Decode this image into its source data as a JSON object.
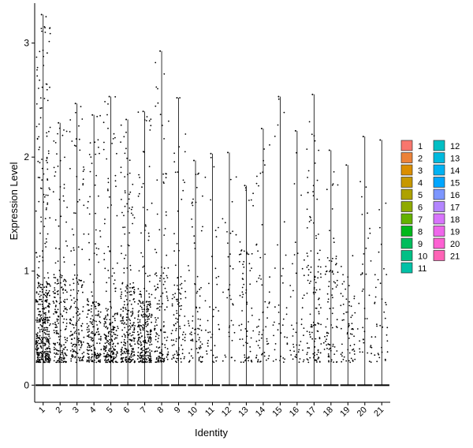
{
  "chart_data": {
    "type": "violin",
    "xlabel": "Identity",
    "ylabel": "Expression Level",
    "ylim": [
      -0.15,
      3.35
    ],
    "yticks": [
      0,
      1,
      2,
      3
    ],
    "categories": [
      "1",
      "2",
      "3",
      "4",
      "5",
      "6",
      "7",
      "8",
      "9",
      "10",
      "11",
      "12",
      "13",
      "14",
      "15",
      "16",
      "17",
      "18",
      "19",
      "20",
      "21"
    ],
    "max_values": [
      3.25,
      2.3,
      2.47,
      2.37,
      2.53,
      2.33,
      2.4,
      2.93,
      2.52,
      1.97,
      2.03,
      2.04,
      1.75,
      2.25,
      2.53,
      2.23,
      2.55,
      2.06,
      1.93,
      2.18,
      2.15
    ],
    "point_density": [
      1.0,
      0.45,
      0.35,
      0.4,
      0.5,
      0.55,
      0.6,
      0.3,
      0.2,
      0.15,
      0.05,
      0.04,
      0.12,
      0.1,
      0.04,
      0.06,
      0.25,
      0.15,
      0.1,
      0.05,
      0.04
    ],
    "point_center": [
      0.5,
      0.55,
      0.55,
      0.4,
      0.35,
      0.5,
      0.4,
      0.6,
      0.55,
      0.5,
      0.6,
      0.9,
      0.7,
      0.9,
      0.6,
      0.7,
      0.75,
      0.65,
      0.55,
      0.9,
      0.7
    ],
    "legend": {
      "title": "",
      "position": "right",
      "entries": [
        {
          "label": "1",
          "color": "#F8766D"
        },
        {
          "label": "2",
          "color": "#EC8239"
        },
        {
          "label": "3",
          "color": "#DB8E00"
        },
        {
          "label": "4",
          "color": "#C79800"
        },
        {
          "label": "5",
          "color": "#AEA200"
        },
        {
          "label": "6",
          "color": "#8FAA00"
        },
        {
          "label": "7",
          "color": "#64B200"
        },
        {
          "label": "8",
          "color": "#00B81B"
        },
        {
          "label": "9",
          "color": "#00BD5C"
        },
        {
          "label": "10",
          "color": "#00C085"
        },
        {
          "label": "11",
          "color": "#00C1A7"
        },
        {
          "label": "12",
          "color": "#00BFC4"
        },
        {
          "label": "13",
          "color": "#00BADE"
        },
        {
          "label": "14",
          "color": "#00B2F3"
        },
        {
          "label": "15",
          "color": "#00A6FF"
        },
        {
          "label": "16",
          "color": "#7C96FF"
        },
        {
          "label": "17",
          "color": "#B385FF"
        },
        {
          "label": "18",
          "color": "#D874FD"
        },
        {
          "label": "19",
          "color": "#EF67EB"
        },
        {
          "label": "20",
          "color": "#FD61D3"
        },
        {
          "label": "21",
          "color": "#FF63B6"
        }
      ]
    },
    "grid": false
  }
}
